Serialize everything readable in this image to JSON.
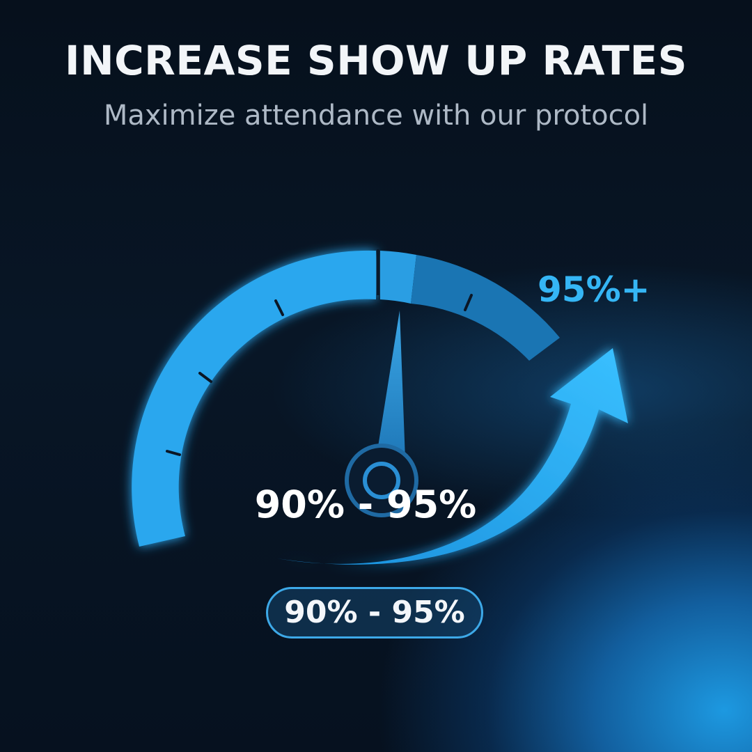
{
  "header": {
    "title": "INCREASE SHOW UP RATES",
    "subtitle": "Maximize attendance with our protocol"
  },
  "gauge": {
    "target_label": "95%+",
    "center_label": "90% - 95%",
    "badge_label": "90% - 95%"
  },
  "colors": {
    "accent": "#35b6f5",
    "gauge_bright": "#29a7ee",
    "gauge_dim": "#1a75b3",
    "background": "#06101c"
  }
}
